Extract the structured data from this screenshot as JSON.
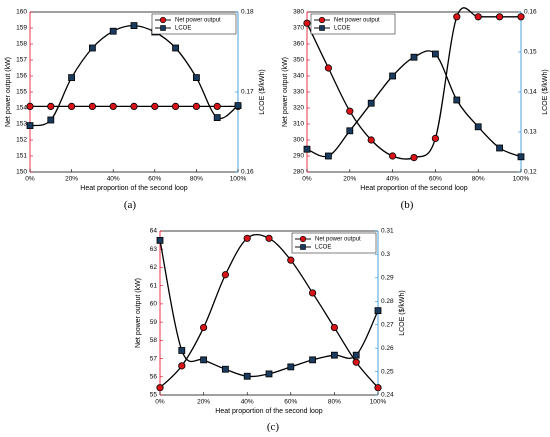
{
  "colors": {
    "left_axis": "#e8001d",
    "right_axis": "#1f8fd6",
    "curve": "#000000",
    "circle_fill": "#d81418",
    "square_fill": "#1a3a5e",
    "line": "#111111"
  },
  "chart_data": [
    {
      "type": "line",
      "caption": "(a)",
      "xlabel": "Heat proportion of the second loop",
      "ylabel_left": "Net power output (kW)",
      "ylabel_right": "LCOE ($/kWh)",
      "x": [
        0,
        10,
        20,
        30,
        40,
        50,
        60,
        70,
        80,
        90,
        100
      ],
      "x_ticks": [
        "0%",
        "20%",
        "40%",
        "60%",
        "80%",
        "100%"
      ],
      "ylim_left": [
        150,
        160
      ],
      "yticks_left": [
        "150",
        "151",
        "152",
        "153",
        "154",
        "155",
        "156",
        "157",
        "158",
        "159",
        "160"
      ],
      "ylim_right": [
        0.16,
        0.18
      ],
      "yticks_right": [
        "0.16",
        "0.17",
        "0.18"
      ],
      "legend": "top-right",
      "series": [
        {
          "name": "Net power output",
          "axis": "left",
          "marker": "circle",
          "values": [
            154.1,
            154.1,
            154.1,
            154.1,
            154.1,
            154.1,
            154.1,
            154.1,
            154.1,
            154.1,
            154.1
          ]
        },
        {
          "name": "LCOE",
          "axis": "right",
          "marker": "square",
          "values": [
            0.1658,
            0.1665,
            0.1718,
            0.1755,
            0.1776,
            0.1783,
            0.1775,
            0.1755,
            0.1718,
            0.1668,
            0.1683
          ]
        }
      ]
    },
    {
      "type": "line",
      "caption": "(b)",
      "xlabel": "Heat proportion of the second loop",
      "ylabel_left": "Net power output (kW)",
      "ylabel_right": "LCOE ($/kWh)",
      "x": [
        0,
        10,
        20,
        30,
        40,
        50,
        60,
        70,
        80,
        90,
        100
      ],
      "x_ticks": [
        "0%",
        "20%",
        "40%",
        "60%",
        "80%",
        "100%"
      ],
      "ylim_left": [
        280,
        380
      ],
      "yticks_left": [
        "280",
        "290",
        "300",
        "310",
        "320",
        "330",
        "340",
        "350",
        "360",
        "370",
        "380"
      ],
      "ylim_right": [
        0.12,
        0.16
      ],
      "yticks_right": [
        "0.12",
        "0.13",
        "0.14",
        "0.15",
        "0.16"
      ],
      "legend": "top-left",
      "series": [
        {
          "name": "Net power output",
          "axis": "left",
          "marker": "circle",
          "values": [
            373,
            345,
            318,
            300,
            290,
            289,
            301,
            377,
            377,
            377,
            377
          ]
        },
        {
          "name": "LCOE",
          "axis": "right",
          "marker": "square",
          "values": [
            0.1257,
            0.124,
            0.1303,
            0.1372,
            0.144,
            0.1487,
            0.1495,
            0.138,
            0.1313,
            0.126,
            0.1238
          ]
        }
      ]
    },
    {
      "type": "line",
      "caption": "(c)",
      "xlabel": "Heat proportion of the second loop",
      "ylabel_left": "Net power output (kW)",
      "ylabel_right": "LCOE ($/kWh)",
      "x": [
        0,
        10,
        20,
        30,
        40,
        50,
        60,
        70,
        80,
        90,
        100
      ],
      "x_ticks": [
        "0%",
        "20%",
        "40%",
        "60%",
        "80%",
        "100%"
      ],
      "ylim_left": [
        55,
        64
      ],
      "yticks_left": [
        "55",
        "56",
        "57",
        "58",
        "59",
        "60",
        "61",
        "62",
        "63",
        "64"
      ],
      "ylim_right": [
        0.24,
        0.31
      ],
      "yticks_right": [
        "0.24",
        "0.25",
        "0.26",
        "0.27",
        "0.28",
        "0.29",
        "0.3",
        "0.31"
      ],
      "legend": "top-right",
      "series": [
        {
          "name": "Net power output",
          "axis": "left",
          "marker": "circle",
          "values": [
            55.4,
            56.6,
            58.7,
            61.6,
            63.6,
            63.6,
            62.4,
            60.6,
            58.7,
            56.8,
            55.4
          ]
        },
        {
          "name": "LCOE",
          "axis": "right",
          "marker": "square",
          "values": [
            0.306,
            0.259,
            0.255,
            0.251,
            0.248,
            0.249,
            0.252,
            0.255,
            0.257,
            0.257,
            0.276
          ]
        }
      ]
    }
  ]
}
